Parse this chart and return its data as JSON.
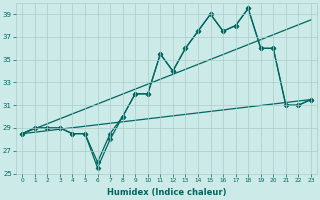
{
  "xlabel": "Humidex (Indice chaleur)",
  "bg_color": "#cceae8",
  "grid_color": "#aaccc8",
  "line_color": "#006660",
  "xlim": [
    -0.5,
    23.5
  ],
  "ylim": [
    25,
    40
  ],
  "yticks": [
    25,
    27,
    29,
    31,
    33,
    35,
    37,
    39
  ],
  "xticks": [
    0,
    1,
    2,
    3,
    4,
    5,
    6,
    7,
    8,
    9,
    10,
    11,
    12,
    13,
    14,
    15,
    16,
    17,
    18,
    19,
    20,
    21,
    22,
    23
  ],
  "series": [
    {
      "x": [
        0,
        1,
        2,
        3,
        4,
        5,
        6,
        7,
        8,
        9,
        10,
        11,
        12,
        13,
        14,
        15,
        16,
        17,
        18,
        19,
        20,
        21,
        22,
        23
      ],
      "y": [
        28.5,
        29,
        29,
        29,
        28.5,
        28.5,
        26.0,
        28.5,
        30,
        32,
        32,
        35.5,
        34,
        36,
        37.5,
        39,
        37.5,
        38,
        39.5,
        36,
        36,
        31,
        31,
        31.5
      ],
      "marker": "D",
      "markersize": 2.5,
      "linewidth": 0.9
    },
    {
      "x": [
        0,
        1,
        2,
        3,
        4,
        5,
        6,
        7,
        8,
        9,
        10,
        11,
        12,
        13,
        14,
        15,
        16,
        17,
        18,
        19,
        20,
        21,
        22,
        23
      ],
      "y": [
        28.5,
        29,
        29,
        29,
        28.5,
        28.5,
        25.5,
        28.0,
        30,
        32,
        32,
        35.5,
        34,
        36,
        37.5,
        39,
        37.5,
        38,
        39.5,
        36,
        36,
        31,
        31,
        31.5
      ],
      "marker": "D",
      "markersize": 2.5,
      "linewidth": 0.9
    },
    {
      "x": [
        0,
        23
      ],
      "y": [
        28.5,
        38.5
      ],
      "marker": null,
      "markersize": 0,
      "linewidth": 0.9
    },
    {
      "x": [
        0,
        23
      ],
      "y": [
        28.5,
        31.5
      ],
      "marker": null,
      "markersize": 0,
      "linewidth": 0.9
    }
  ]
}
